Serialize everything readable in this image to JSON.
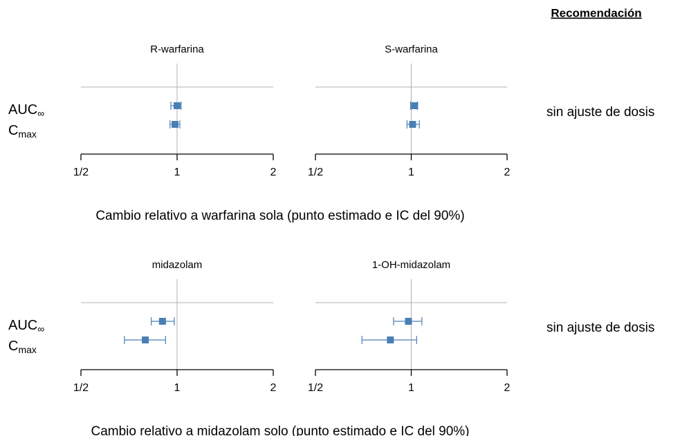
{
  "header": "Recomendación",
  "groups": [
    {
      "row_labels": [
        {
          "text": "AUC",
          "sub": "∞"
        },
        {
          "text": "C",
          "sub": "max"
        }
      ],
      "caption": "Cambio relativo a warfarina sola (punto estimado e IC del 90%)",
      "recommendation": "sin ajuste de dosis"
    },
    {
      "row_labels": [
        {
          "text": "AUC",
          "sub": "∞"
        },
        {
          "text": "C",
          "sub": "max"
        }
      ],
      "caption": "Cambio relativo a midazolam solo (punto estimado e IC del 90%)",
      "recommendation": "sin ajuste de dosis"
    }
  ],
  "chart_data": [
    {
      "type": "forest",
      "title": "R-warfarina",
      "color": "#4a7fb5",
      "xscale": "log",
      "reference": 1,
      "xlim": [
        0.5,
        2
      ],
      "xticks": [
        {
          "value": 0.5,
          "label": "1/2"
        },
        1,
        2
      ],
      "values": [
        1.0,
        0.985
      ],
      "lower": [
        0.956,
        0.95
      ],
      "upper": [
        1.03,
        1.02
      ]
    },
    {
      "type": "forest",
      "title": "S-warfarina",
      "color": "#4a7fb5",
      "xscale": "log",
      "reference": 1,
      "xlim": [
        0.5,
        2
      ],
      "xticks": [
        {
          "value": 0.5,
          "label": "1/2"
        },
        1,
        2
      ],
      "values": [
        1.025,
        1.01
      ],
      "lower": [
        0.995,
        0.97
      ],
      "upper": [
        1.045,
        1.06
      ]
    },
    {
      "type": "forest",
      "title": "midazolam",
      "color": "#4a7fb5",
      "xscale": "log",
      "reference": 1,
      "xlim": [
        0.5,
        2
      ],
      "xticks": [
        {
          "value": 0.5,
          "label": "1/2"
        },
        1,
        2
      ],
      "values": [
        0.9,
        0.795
      ],
      "lower": [
        0.83,
        0.684
      ],
      "upper": [
        0.98,
        0.92
      ]
    },
    {
      "type": "forest",
      "title": "1-OH-midazolam",
      "color": "#4a7fb5",
      "xscale": "log",
      "reference": 1,
      "xlim": [
        0.5,
        2
      ],
      "xticks": [
        {
          "value": 0.5,
          "label": "1/2"
        },
        1,
        2
      ],
      "values": [
        0.98,
        0.86
      ],
      "lower": [
        0.88,
        0.7
      ],
      "upper": [
        1.08,
        1.04
      ]
    }
  ]
}
